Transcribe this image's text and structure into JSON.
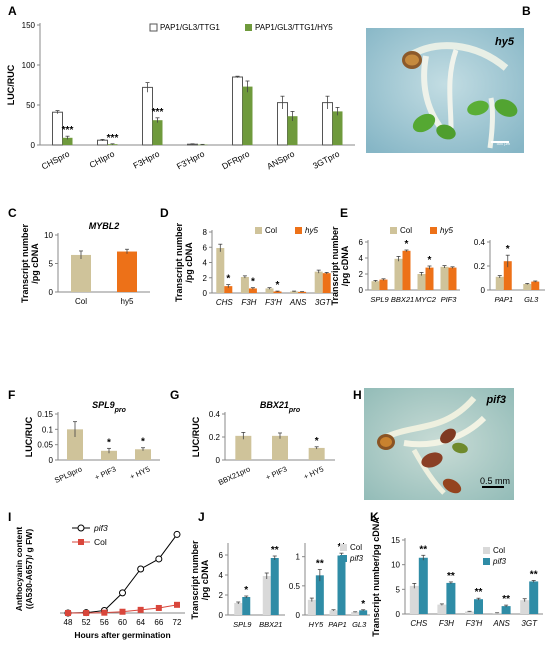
{
  "colors": {
    "white_bar": "#ffffff",
    "green": "#6f9a3c",
    "beige": "#cfc39a",
    "orange": "#ed7118",
    "teal": "#2f8ca6",
    "light_gray": "#d9d9d9",
    "red": "#d9463b",
    "photo_bg": "#9fc8d6",
    "photo_bg2": "#a7cbc9"
  },
  "panel_letters": {
    "A": "A",
    "B": "B",
    "C": "C",
    "D": "D",
    "E": "E",
    "F": "F",
    "G": "G",
    "H": "H",
    "I": "I",
    "J": "J",
    "K": "K"
  },
  "photos": {
    "B": {
      "label": "hy5",
      "scalebar": "500 µm"
    },
    "H": {
      "label": "pif3",
      "scalebar": "0.5 mm"
    }
  },
  "chart_data": [
    {
      "id": "A",
      "type": "bar",
      "ylabel": "LUC/RUC",
      "ylim": [
        0,
        150
      ],
      "yticks": [
        0,
        50,
        100,
        150
      ],
      "categories": [
        "CHSpro",
        "CHIpro",
        "F3Hpro",
        "F3'Hpro",
        "DFRpro",
        "ANSpro",
        "3GTpro"
      ],
      "series": [
        {
          "name": "PAP1/GL3/TTG1",
          "color": "#ffffff",
          "values": [
            41,
            6,
            72,
            1,
            85,
            53,
            53
          ],
          "errors": [
            2,
            1,
            6,
            0.5,
            1,
            8,
            8
          ]
        },
        {
          "name": "PAP1/GL3/TTG1/HY5",
          "color": "#6f9a3c",
          "values": [
            9,
            1,
            31,
            0.5,
            73,
            36,
            42
          ],
          "errors": [
            2,
            0.5,
            3,
            0.3,
            7,
            6,
            5
          ]
        }
      ],
      "annotations": [
        {
          "category": "CHSpro",
          "text": "***"
        },
        {
          "category": "CHIpro",
          "text": "***"
        },
        {
          "category": "F3Hpro",
          "text": "***"
        }
      ]
    },
    {
      "id": "C",
      "type": "bar",
      "title": "MYBL2",
      "ylabel": "Transcript number /pg cDNA",
      "ylim": [
        0,
        10
      ],
      "yticks": [
        0,
        5,
        10
      ],
      "categories": [
        "Col",
        "hy5"
      ],
      "values": [
        6.5,
        7.1
      ],
      "errors": [
        0.7,
        0.4
      ],
      "colors": [
        "#cfc39a",
        "#ed7118"
      ]
    },
    {
      "id": "D",
      "type": "bar",
      "ylabel": "Transcript number /pg cDNA",
      "ylim": [
        0,
        8
      ],
      "yticks": [
        0,
        2,
        4,
        6,
        8
      ],
      "categories": [
        "CHS",
        "F3H",
        "F3'H",
        "ANS",
        "3GT"
      ],
      "series": [
        {
          "name": "Col",
          "color": "#cfc39a",
          "values": [
            5.9,
            2.1,
            0.6,
            0.2,
            2.8
          ],
          "errors": [
            0.5,
            0.15,
            0.1,
            0.05,
            0.2
          ]
        },
        {
          "name": "hy5",
          "color": "#ed7118",
          "values": [
            0.9,
            0.6,
            0.2,
            0.15,
            2.6
          ],
          "errors": [
            0.2,
            0.1,
            0.05,
            0.03,
            0.1
          ]
        }
      ],
      "annotations": [
        {
          "category": "CHS",
          "text": "*"
        },
        {
          "category": "F3H",
          "text": "*"
        },
        {
          "category": "F3'H",
          "text": "*"
        }
      ]
    },
    {
      "id": "E1",
      "type": "bar",
      "ylabel": "Transcript number /pg cDNA",
      "ylim": [
        0,
        6
      ],
      "yticks": [
        0,
        2,
        4,
        6
      ],
      "categories": [
        "SPL9",
        "BBX21",
        "MYC2",
        "PIF3"
      ],
      "series": [
        {
          "name": "Col",
          "color": "#cfc39a",
          "values": [
            1.1,
            3.9,
            2.0,
            2.9
          ],
          "errors": [
            0.1,
            0.3,
            0.2,
            0.15
          ]
        },
        {
          "name": "hy5",
          "color": "#ed7118",
          "values": [
            1.3,
            4.9,
            2.8,
            2.8
          ],
          "errors": [
            0.1,
            0.1,
            0.2,
            0.1
          ]
        }
      ],
      "annotations": [
        {
          "category": "BBX21",
          "text": "*"
        },
        {
          "category": "MYC2",
          "text": "*"
        }
      ]
    },
    {
      "id": "E2",
      "type": "bar",
      "ylim": [
        0,
        0.4
      ],
      "yticks": [
        0,
        0.2,
        0.4
      ],
      "categories": [
        "PAP1",
        "GL3"
      ],
      "series": [
        {
          "name": "Col",
          "color": "#cfc39a",
          "values": [
            0.11,
            0.05
          ],
          "errors": [
            0.01,
            0.005
          ]
        },
        {
          "name": "hy5",
          "color": "#ed7118",
          "values": [
            0.24,
            0.07
          ],
          "errors": [
            0.05,
            0.005
          ]
        }
      ],
      "annotations": [
        {
          "category": "PAP1",
          "text": "*"
        }
      ]
    },
    {
      "id": "F",
      "type": "bar",
      "title": "SPL9",
      "title_sub": "pro",
      "ylabel": "LUC/RUC",
      "ylim": [
        0,
        0.15
      ],
      "yticks": [
        0,
        0.05,
        0.1,
        0.15
      ],
      "categories": [
        "SPL9pro",
        "+ PIF3",
        "+ HY5"
      ],
      "values": [
        0.1,
        0.03,
        0.035
      ],
      "errors": [
        0.025,
        0.008,
        0.005
      ],
      "colors": [
        "#cfc39a",
        "#cfc39a",
        "#cfc39a"
      ],
      "annotations": [
        {
          "category": "+ PIF3",
          "text": "*"
        },
        {
          "category": "+ HY5",
          "text": "*"
        }
      ]
    },
    {
      "id": "G",
      "type": "bar",
      "title": "BBX21",
      "title_sub": "pro",
      "ylabel": "LUC/RUC",
      "ylim": [
        0,
        0.4
      ],
      "yticks": [
        0,
        0.2,
        0.4
      ],
      "categories": [
        "BBX21pro",
        "+ PIF3",
        "+ HY5"
      ],
      "values": [
        0.21,
        0.21,
        0.105
      ],
      "errors": [
        0.03,
        0.025,
        0.01
      ],
      "colors": [
        "#cfc39a",
        "#cfc39a",
        "#cfc39a"
      ],
      "annotations": [
        {
          "category": "+ HY5",
          "text": "*"
        }
      ]
    },
    {
      "id": "I",
      "type": "line",
      "ylabel": "Anthocyanin content ((A530-A657)/ g FW)",
      "xlabel": "Hours after germination",
      "x": [
        48,
        52,
        56,
        60,
        64,
        66,
        72
      ],
      "xticks": [
        "48",
        "52",
        "56",
        "60",
        "64",
        "66",
        "72"
      ],
      "series": [
        {
          "name": "pif3",
          "color": "#000000",
          "marker": "circle",
          "values": [
            0,
            0.05,
            0.4,
            3.2,
            7.0,
            8.6,
            12.5
          ]
        },
        {
          "name": "Col",
          "color": "#d9463b",
          "marker": "square",
          "values": [
            0,
            0,
            0.05,
            0.2,
            0.5,
            0.8,
            1.3
          ]
        }
      ],
      "ylim": [
        0,
        14
      ]
    },
    {
      "id": "J1",
      "type": "bar",
      "ylabel": "Transcript number /pg cDNA",
      "ylim": [
        0,
        7
      ],
      "yticks": [
        0,
        2,
        4,
        6
      ],
      "categories": [
        "SPL9",
        "BBX21"
      ],
      "series": [
        {
          "name": "Col",
          "color": "#d9d9d9",
          "values": [
            1.2,
            3.9
          ],
          "errors": [
            0.1,
            0.3
          ]
        },
        {
          "name": "pif3",
          "color": "#2f8ca6",
          "values": [
            1.8,
            5.7
          ],
          "errors": [
            0.1,
            0.2
          ]
        }
      ],
      "annotations": [
        {
          "category": "SPL9",
          "text": "*"
        },
        {
          "category": "BBX21",
          "text": "**"
        }
      ]
    },
    {
      "id": "J2",
      "type": "bar",
      "ylim": [
        0,
        1.2
      ],
      "yticks": [
        0,
        0.5,
        1
      ],
      "categories": [
        "HY5",
        "PAP1",
        "GL3"
      ],
      "series": [
        {
          "name": "Col",
          "color": "#d9d9d9",
          "values": [
            0.26,
            0.08,
            0.05
          ],
          "errors": [
            0.03,
            0.01,
            0.005
          ]
        },
        {
          "name": "pif3",
          "color": "#2f8ca6",
          "values": [
            0.68,
            1.02,
            0.08
          ],
          "errors": [
            0.1,
            0.04,
            0.01
          ]
        }
      ],
      "annotations": [
        {
          "category": "HY5",
          "text": "**"
        },
        {
          "category": "PAP1",
          "text": "**"
        },
        {
          "category": "GL3",
          "text": "*"
        }
      ]
    },
    {
      "id": "K",
      "type": "bar",
      "ylabel": "Transcript number/pg cDNA",
      "ylim": [
        0,
        15
      ],
      "yticks": [
        0,
        5,
        10,
        15
      ],
      "categories": [
        "CHS",
        "F3H",
        "F3'H",
        "ANS",
        "3GT"
      ],
      "series": [
        {
          "name": "Col",
          "color": "#d9d9d9",
          "values": [
            5.7,
            1.9,
            0.5,
            0.2,
            2.8
          ],
          "errors": [
            0.5,
            0.15,
            0.05,
            0.05,
            0.3
          ]
        },
        {
          "name": "pif3",
          "color": "#2f8ca6",
          "values": [
            11.4,
            6.3,
            3.0,
            1.6,
            6.6
          ],
          "errors": [
            0.5,
            0.2,
            0.2,
            0.2,
            0.2
          ]
        }
      ],
      "annotations": [
        {
          "category": "CHS",
          "text": "**"
        },
        {
          "category": "F3H",
          "text": "**"
        },
        {
          "category": "F3'H",
          "text": "**"
        },
        {
          "category": "ANS",
          "text": "**"
        },
        {
          "category": "3GT",
          "text": "**"
        }
      ]
    }
  ]
}
